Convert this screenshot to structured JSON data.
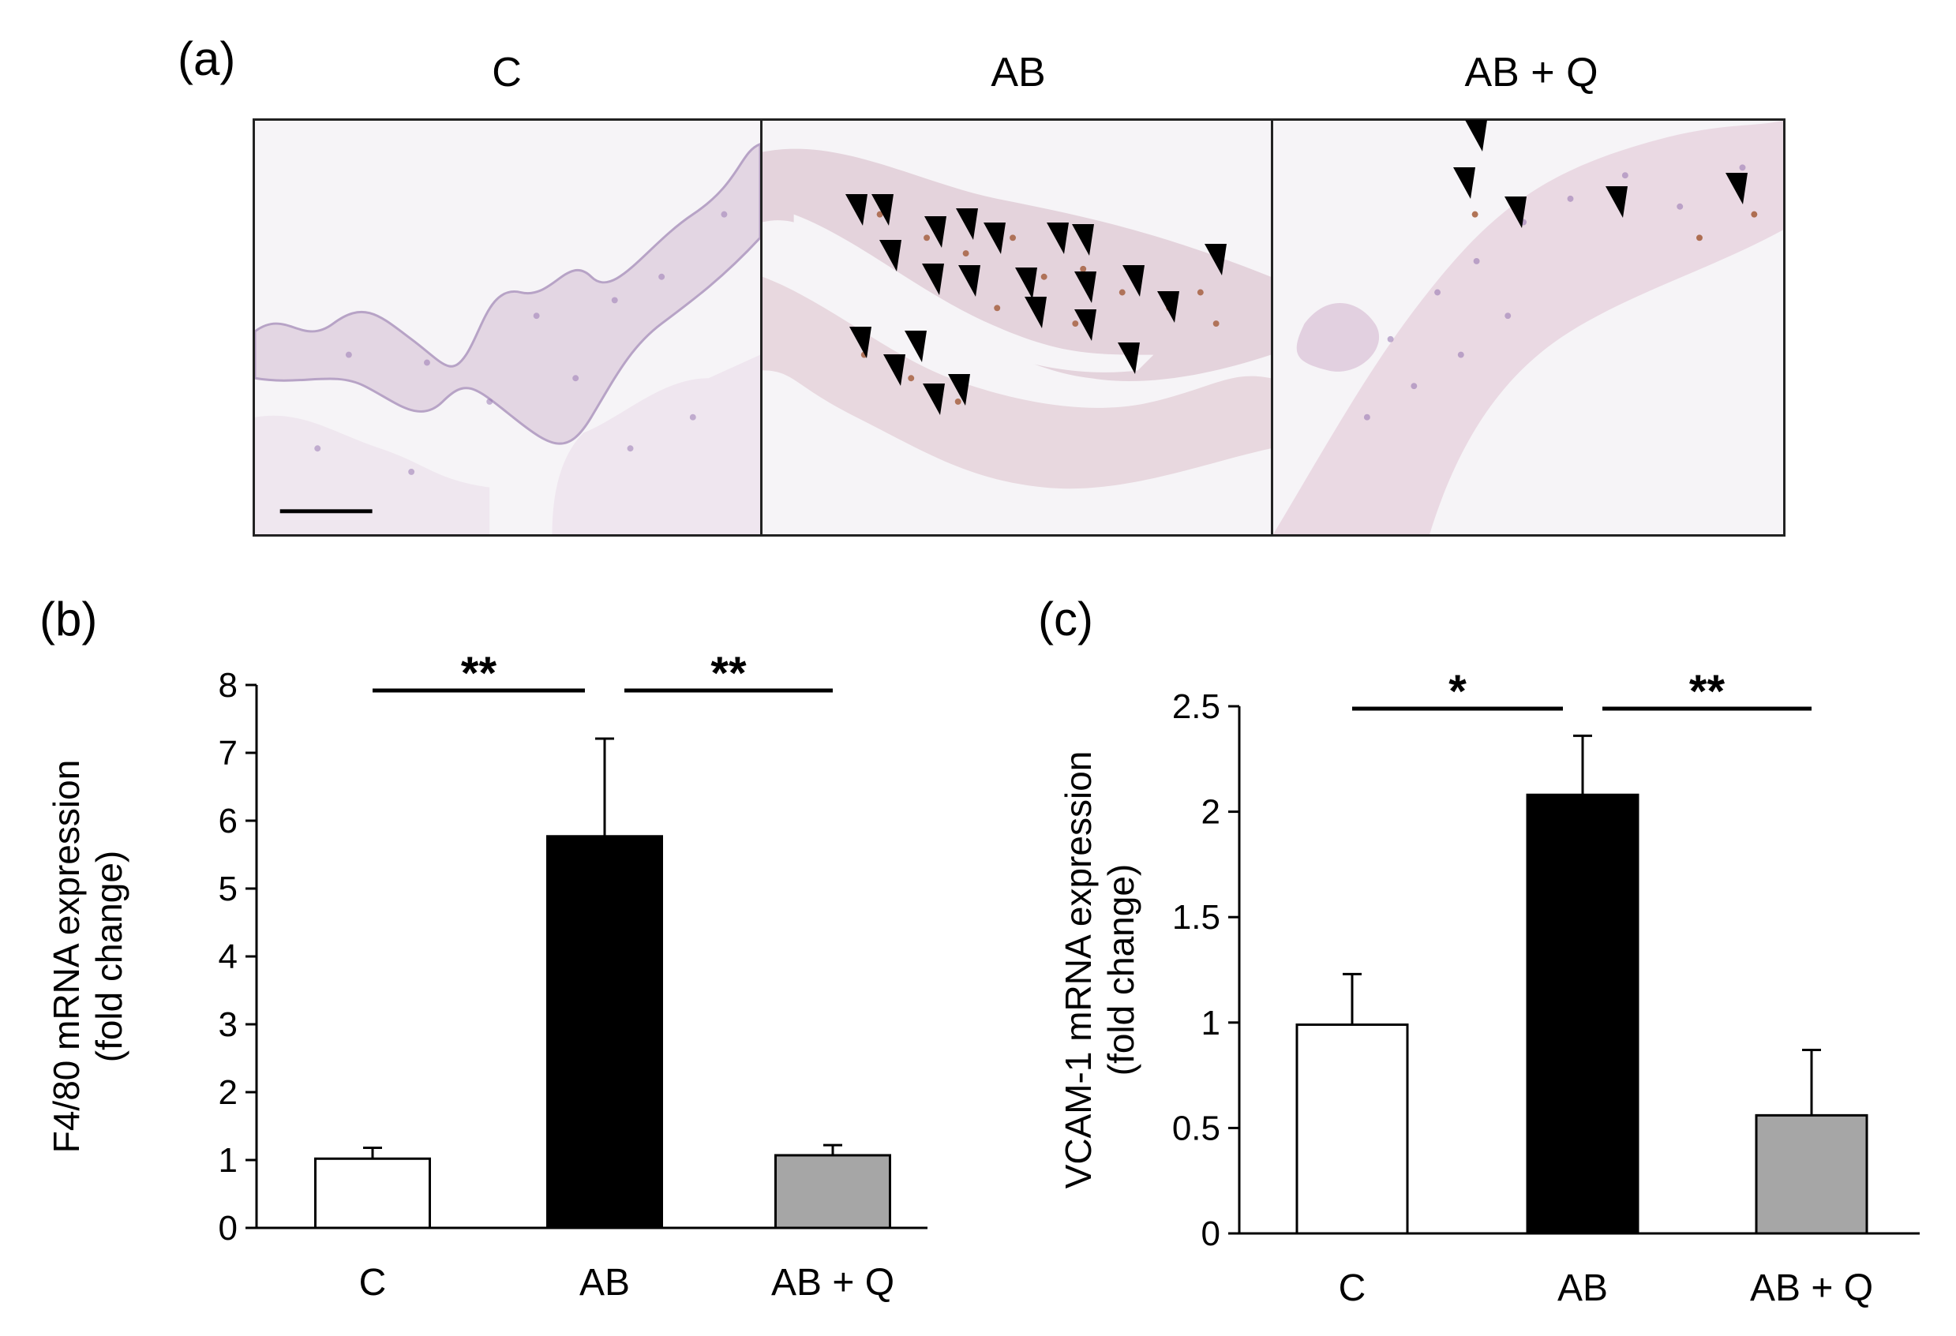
{
  "panel_a": {
    "letter": "(a)",
    "titles": [
      "C",
      "AB",
      "AB + Q"
    ],
    "tissue_colors": {
      "background": "#f6f4f7",
      "tissue": "#e7dbe6",
      "nuclei": "#9b7bb4",
      "brown": "#9a4a22"
    },
    "arrowheads_per_image": [
      0,
      23,
      5
    ]
  },
  "chart_data": [
    {
      "letter": "(b)",
      "type": "bar",
      "categories": [
        "C",
        "AB",
        "AB + Q"
      ],
      "values": [
        1.02,
        5.77,
        1.07
      ],
      "errors": [
        0.16,
        1.44,
        0.15
      ],
      "bar_colors": [
        "#ffffff",
        "#000000",
        "#a6a6a6"
      ],
      "ylabel_lines": [
        "F4/80 mRNA expression",
        "(fold change)"
      ],
      "ylim": [
        0,
        8
      ],
      "yticks": [
        "0",
        "1",
        "2",
        "3",
        "4",
        "5",
        "6",
        "7",
        "8"
      ],
      "significance": [
        {
          "from": 0,
          "to": 1,
          "label": "**"
        },
        {
          "from": 1,
          "to": 2,
          "label": "**"
        }
      ]
    },
    {
      "letter": "(c)",
      "type": "bar",
      "categories": [
        "C",
        "AB",
        "AB + Q"
      ],
      "values": [
        0.99,
        2.08,
        0.56
      ],
      "errors": [
        0.24,
        0.28,
        0.31
      ],
      "bar_colors": [
        "#ffffff",
        "#000000",
        "#a6a6a6"
      ],
      "ylabel_lines": [
        "VCAM-1 mRNA expression",
        "(fold change)"
      ],
      "ylim": [
        0,
        2.5
      ],
      "yticks": [
        "0",
        "0.5",
        "1",
        "1.5",
        "2",
        "2.5"
      ],
      "significance": [
        {
          "from": 0,
          "to": 1,
          "label": "*"
        },
        {
          "from": 1,
          "to": 2,
          "label": "**"
        }
      ]
    }
  ]
}
